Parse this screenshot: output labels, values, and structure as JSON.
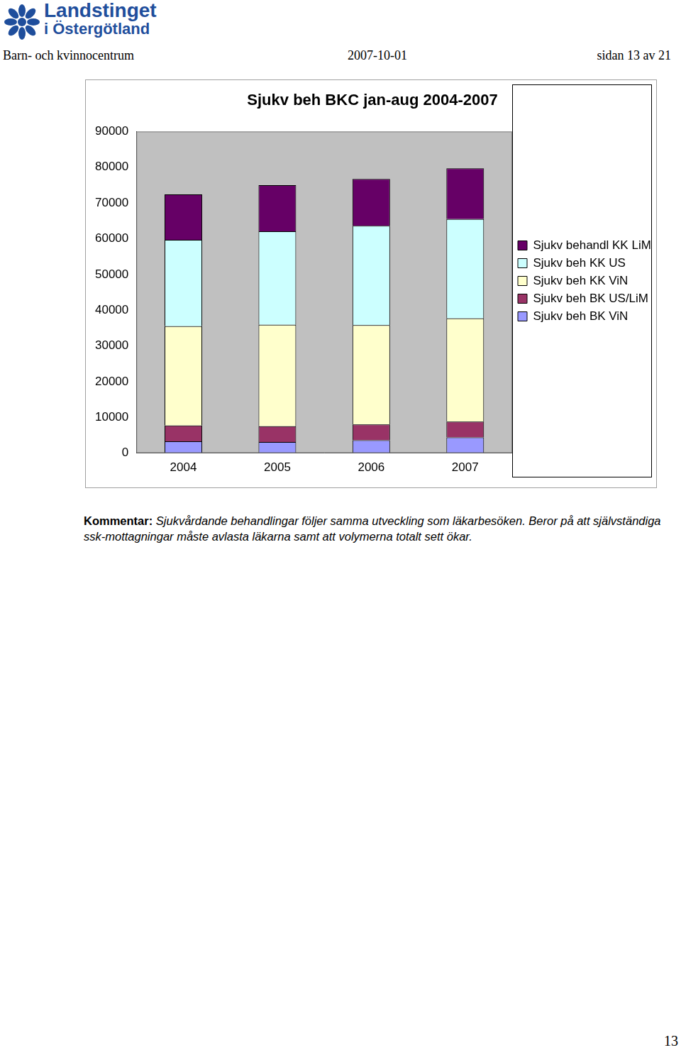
{
  "header": {
    "logo": [
      "Landstinget",
      "i Östergötland"
    ],
    "left": "Barn- och kvinnocentrum",
    "date": "2007-10-01",
    "page": "sidan 13 av 21"
  },
  "chart_data": {
    "type": "bar",
    "title": "Sjukv beh BKC jan-aug 2004-2007",
    "categories": [
      "2004",
      "2005",
      "2006",
      "2007"
    ],
    "series": [
      {
        "name": "Sjukv beh BK ViN",
        "color": "#9999ff",
        "values": [
          3300,
          3100,
          3600,
          4400
        ]
      },
      {
        "name": "Sjukv beh BK US/LiM",
        "color": "#993366",
        "values": [
          4400,
          4400,
          4400,
          4400
        ]
      },
      {
        "name": "Sjukv beh KK ViN",
        "color": "#ffffcc",
        "values": [
          27800,
          28400,
          27800,
          28900
        ]
      },
      {
        "name": "Sjukv beh KK US",
        "color": "#ccffff",
        "values": [
          24200,
          26200,
          27800,
          27800
        ]
      },
      {
        "name": "Sjukv behandl KK LiM",
        "color": "#660066",
        "values": [
          12700,
          12900,
          13100,
          14200
        ]
      }
    ],
    "stacked": true,
    "legend": "right",
    "grid": false,
    "ylim": [
      0,
      90000
    ],
    "yticks": [
      0,
      10000,
      20000,
      30000,
      40000,
      50000,
      60000,
      70000,
      80000,
      90000
    ]
  },
  "comment": {
    "label": "Kommentar:",
    "text": "Sjukvårdande behandlingar följer samma utveckling som läkarbesöken. Beror på att självständiga ssk-mottagningar måste avlasta läkarna samt att volymerna totalt sett ökar."
  },
  "page_number": "13"
}
